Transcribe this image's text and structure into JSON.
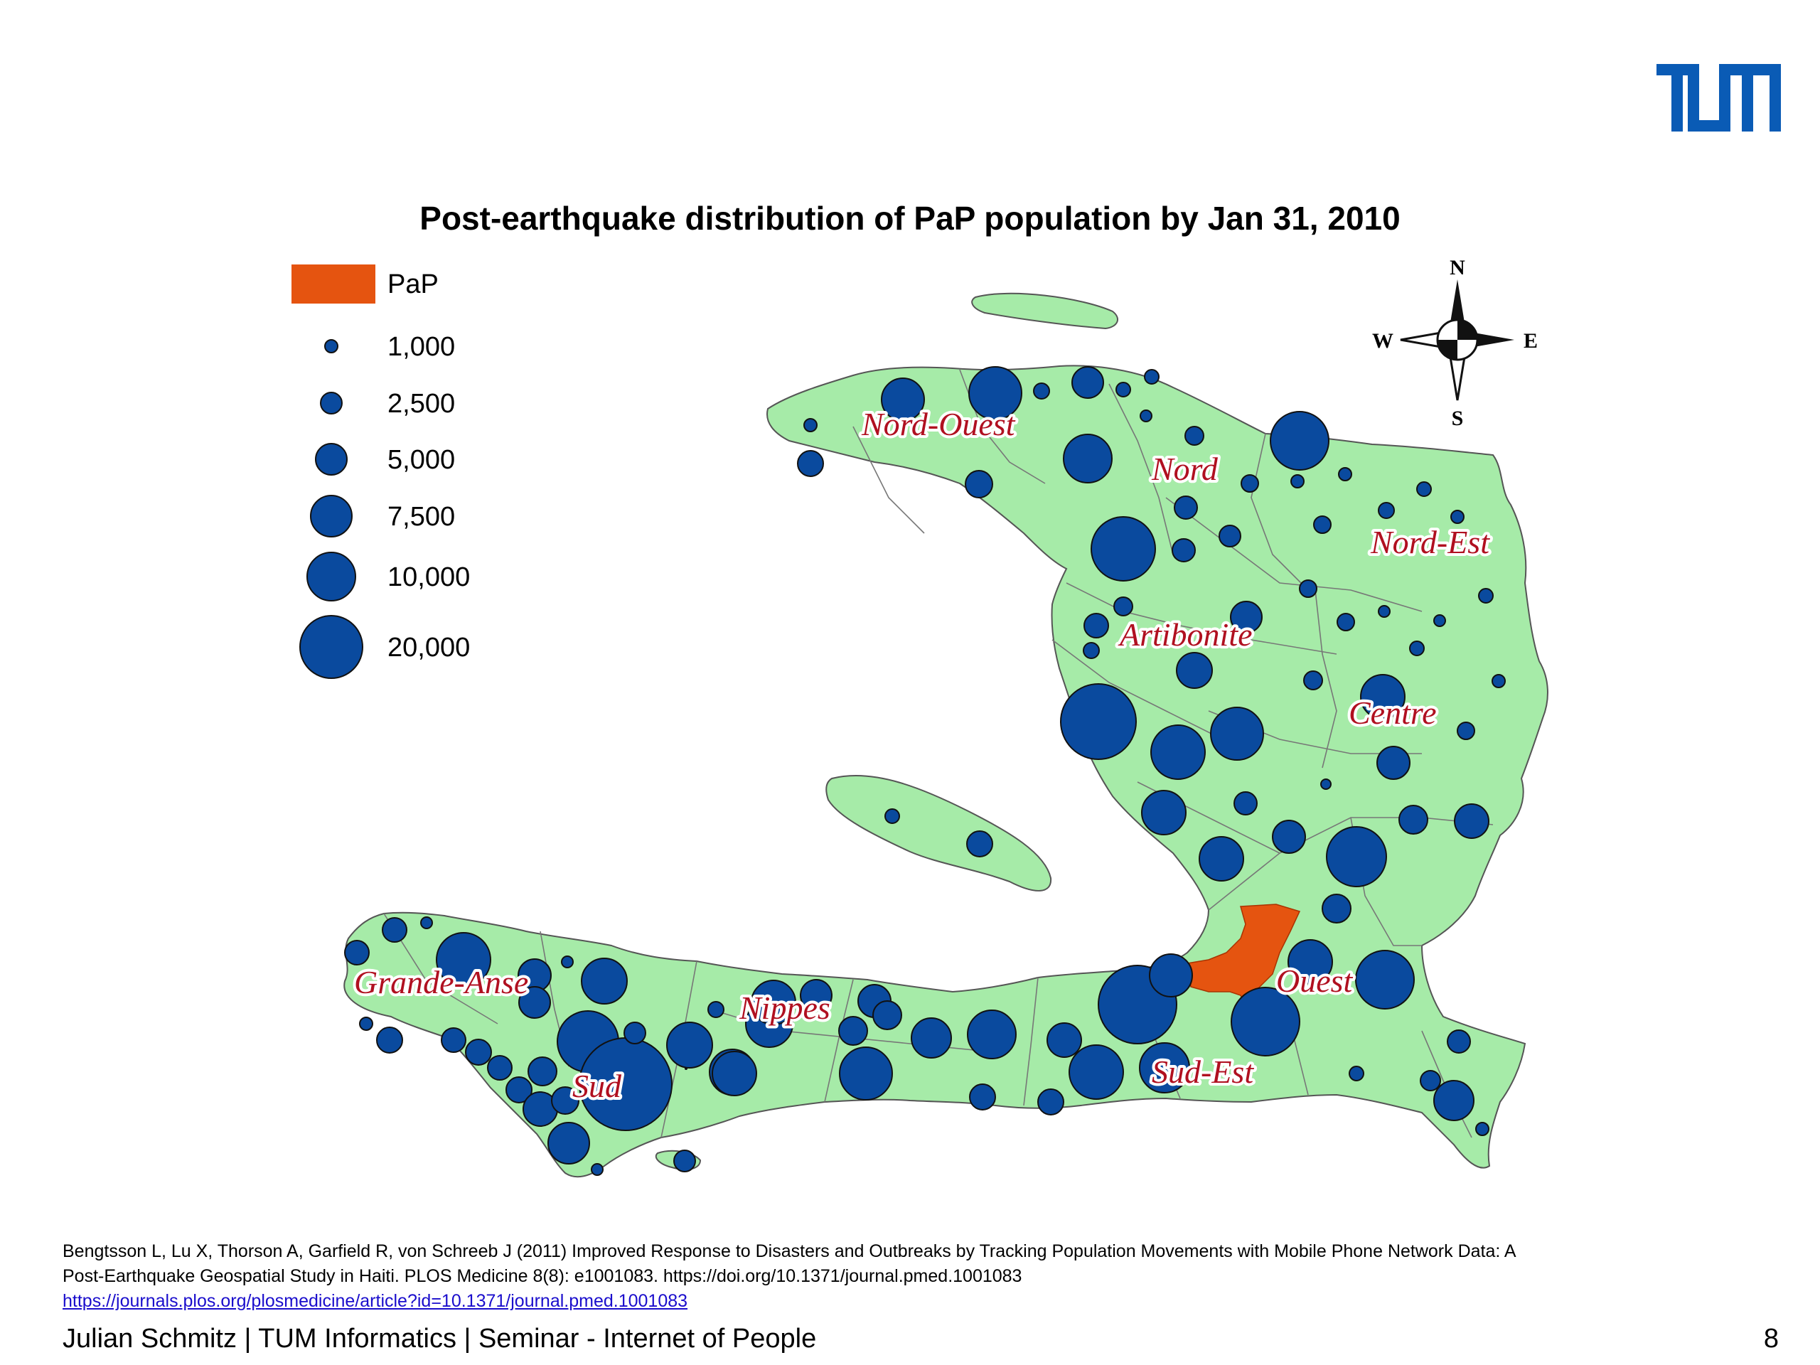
{
  "slide": {
    "logo_text": "TUM",
    "logo_color": "#0a5bb5",
    "title": "Post-earthquake distribution of PaP population by Jan 31, 2010",
    "citation_line1": "Bengtsson L, Lu X, Thorson A, Garfield R, von Schreeb J (2011) Improved Response to Disasters and Outbreaks by Tracking Population Movements with Mobile Phone Network Data: A",
    "citation_line2": "Post-Earthquake Geospatial Study in Haiti. PLOS Medicine 8(8): e1001083. https://doi.org/10.1371/journal.pmed.1001083",
    "citation_link": "https://journals.plos.org/plosmedicine/article?id=10.1371/journal.pmed.1001083",
    "footer": "Julian Schmitz | TUM Informatics | Seminar - Internet of People",
    "page_number": "8"
  },
  "legend": {
    "pap_label": "PaP",
    "pap_color": "#e55410",
    "bubble_color": "#0a4a9e",
    "entries": [
      "1,000",
      "2,500",
      "5,000",
      "7,500",
      "10,000",
      "20,000"
    ]
  },
  "compass": {
    "n": "N",
    "s": "S",
    "e": "E",
    "w": "W"
  },
  "departments": {
    "nord_ouest": "Nord-Ouest",
    "nord": "Nord",
    "nord_est": "Nord-Est",
    "artibonite": "Artibonite",
    "centre": "Centre",
    "ouest": "Ouest",
    "grande_anse": "Grande-Anse",
    "nippes": "Nippes",
    "sud": "Sud",
    "sud_est": "Sud-Est"
  },
  "colors": {
    "land": "#a6eba8",
    "land_border": "#5a5a5a",
    "label_color": "#b01020"
  }
}
